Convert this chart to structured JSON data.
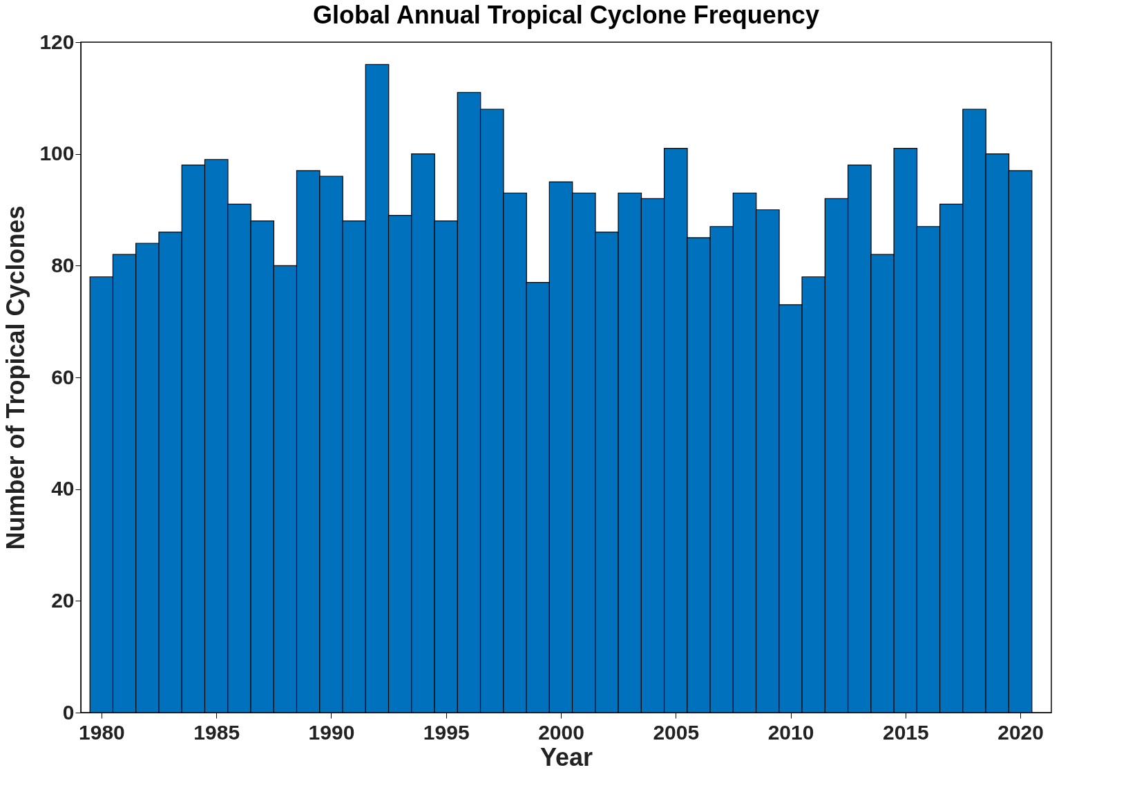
{
  "chart_data": {
    "type": "bar",
    "title": "Global Annual Tropical Cyclone Frequency",
    "xlabel": "Year",
    "ylabel": "Number of Tropical Cyclones",
    "x": [
      1980,
      1981,
      1982,
      1983,
      1984,
      1985,
      1986,
      1987,
      1988,
      1989,
      1990,
      1991,
      1992,
      1993,
      1994,
      1995,
      1996,
      1997,
      1998,
      1999,
      2000,
      2001,
      2002,
      2003,
      2004,
      2005,
      2006,
      2007,
      2008,
      2009,
      2010,
      2011,
      2012,
      2013,
      2014,
      2015,
      2016,
      2017,
      2018,
      2019,
      2020
    ],
    "values": [
      78,
      82,
      84,
      86,
      98,
      99,
      91,
      88,
      80,
      97,
      96,
      88,
      116,
      89,
      100,
      88,
      111,
      108,
      93,
      77,
      95,
      93,
      86,
      93,
      92,
      101,
      85,
      87,
      93,
      90,
      73,
      78,
      92,
      98,
      82,
      101,
      87,
      91,
      108,
      100,
      97
    ],
    "color": "#0072bd",
    "xlim": [
      1979.25,
      2021.2
    ],
    "xticks": [
      1980,
      1985,
      1990,
      1995,
      2000,
      2005,
      2010,
      2015,
      2020
    ],
    "ylim": [
      0,
      120
    ],
    "yticks": [
      0,
      20,
      40,
      60,
      80,
      100,
      120
    ],
    "grid": false
  }
}
